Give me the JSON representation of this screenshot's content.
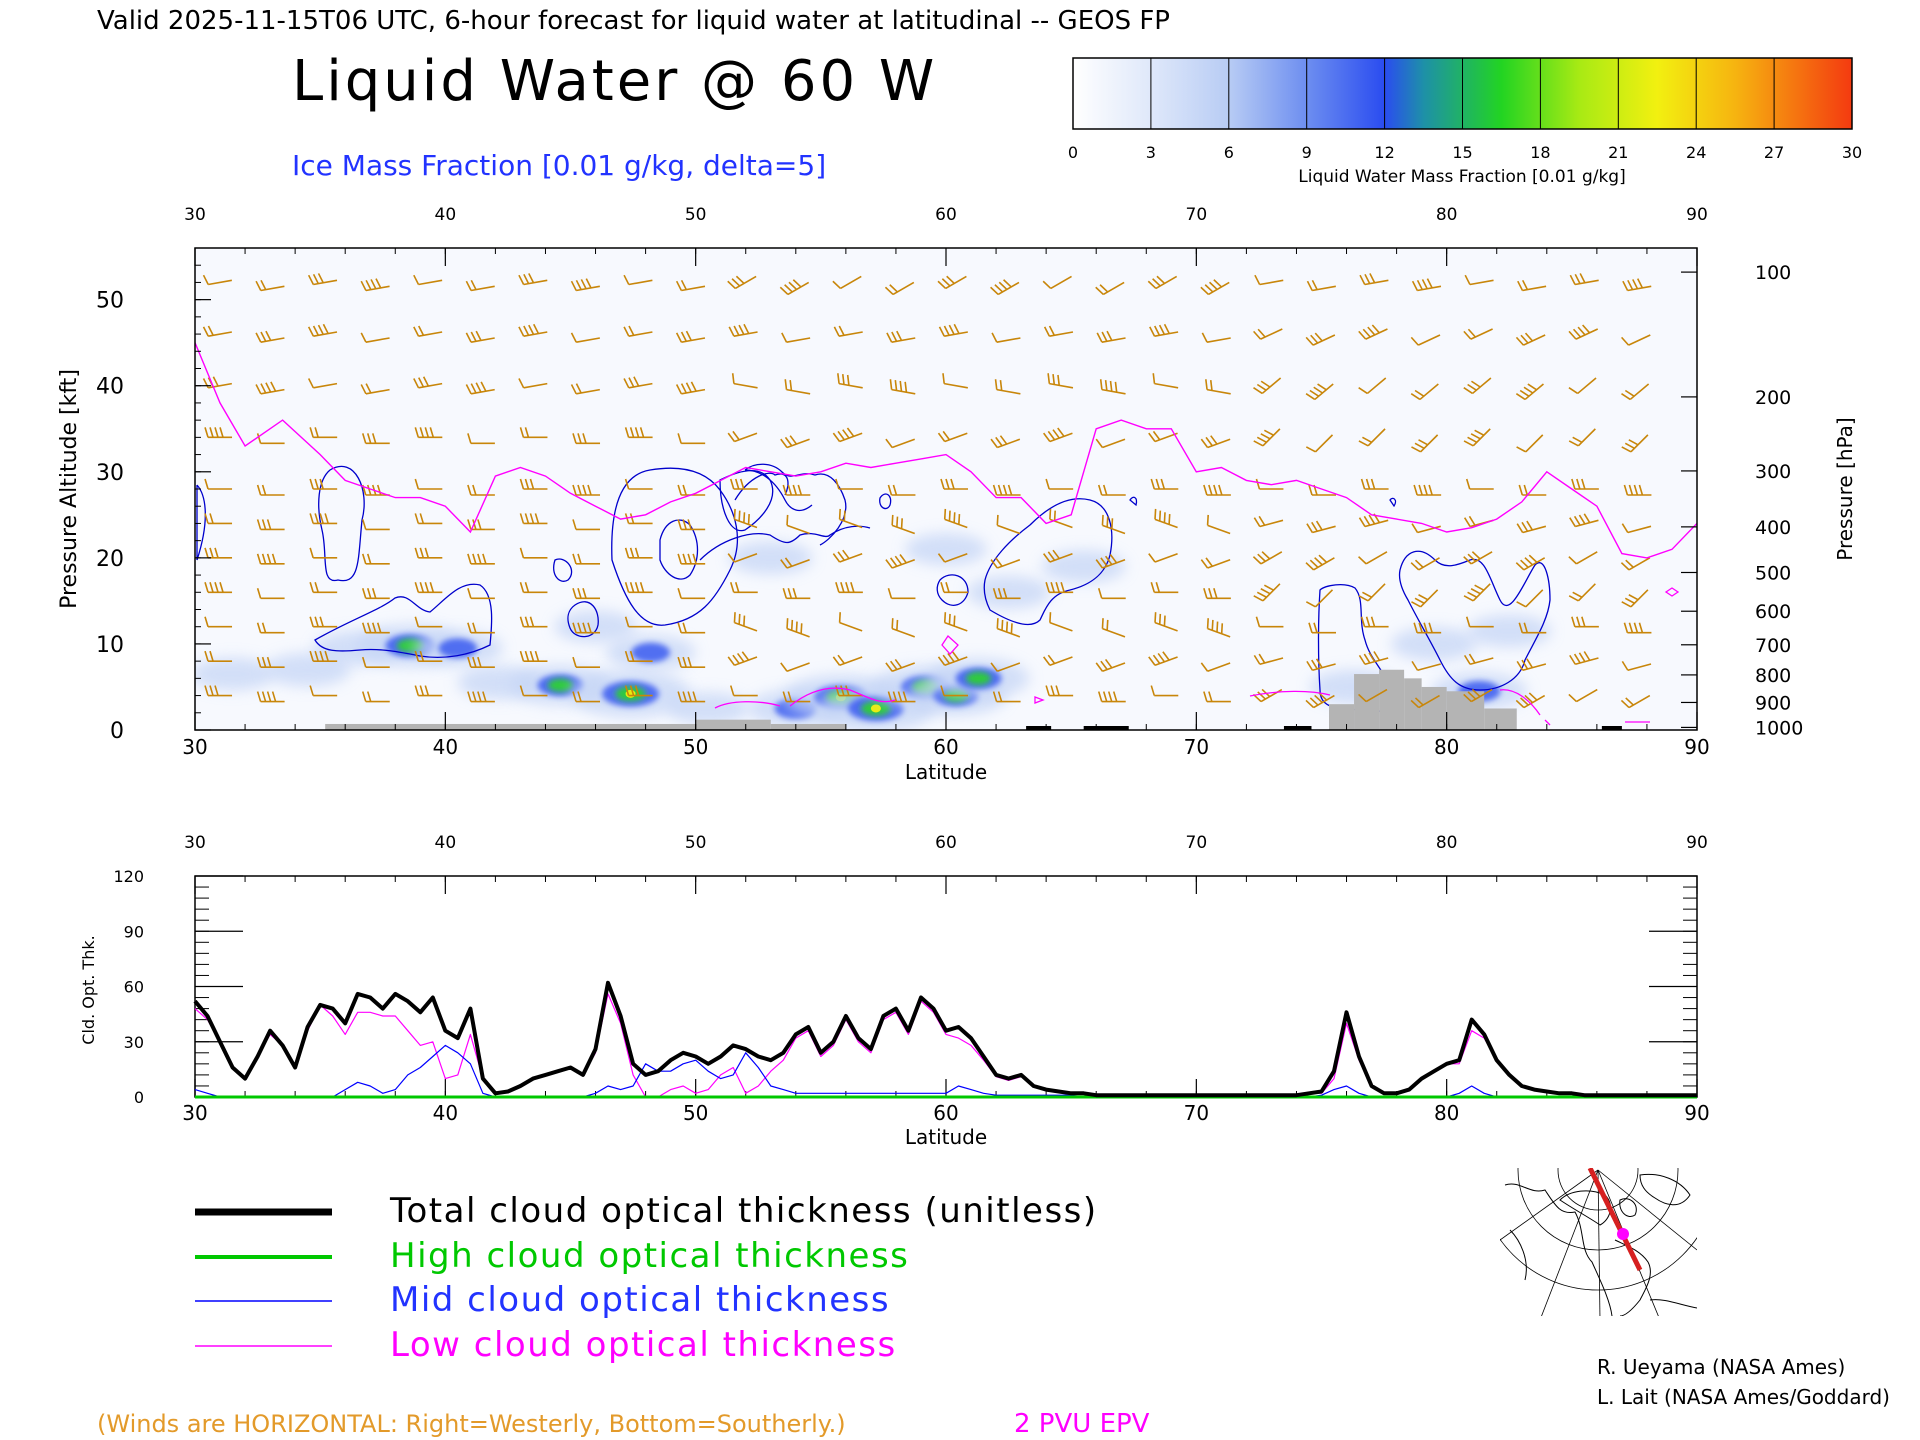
{
  "header": {
    "valid_line": "Valid 2025-11-15T06 UTC, 6-hour forecast for liquid water at latitudinal -- GEOS FP",
    "main_title": "Liquid Water @ 60 W",
    "subtitle": "Ice Mass Fraction [0.01 g/kg, delta=5]"
  },
  "colorbar": {
    "ticks": [
      "0",
      "3",
      "6",
      "9",
      "12",
      "15",
      "18",
      "21",
      "24",
      "27",
      "30"
    ],
    "label": "Liquid Water Mass Fraction [0.01 g/kg]",
    "colors": [
      "#f2f5fc",
      "#ccdaf6",
      "#a6c0f2",
      "#7a9cee",
      "#3a5cf0",
      "#2a9a9a",
      "#2ad42a",
      "#8ae818",
      "#e8ec10",
      "#f4b010",
      "#f46a10"
    ]
  },
  "chart_data": [
    {
      "type": "heatmap",
      "title": "Liquid Water @ 60 W",
      "xlabel": "Latitude",
      "ylabel": "Pressure Altitude [kft]",
      "ylabel_right": "Pressure [hPa]",
      "xlim": [
        30,
        90
      ],
      "ylim": [
        0,
        56
      ],
      "x_ticks": [
        "30",
        "40",
        "50",
        "60",
        "70",
        "80",
        "90"
      ],
      "y_ticks": [
        "0",
        "10",
        "20",
        "30",
        "40",
        "50"
      ],
      "pressure_ticks": [
        {
          "label": "100",
          "kft": 53.2
        },
        {
          "label": "200",
          "kft": 38.7
        },
        {
          "label": "300",
          "kft": 30.1
        },
        {
          "label": "400",
          "kft": 23.6
        },
        {
          "label": "500",
          "kft": 18.3
        },
        {
          "label": "600",
          "kft": 13.8
        },
        {
          "label": "700",
          "kft": 9.9
        },
        {
          "label": "800",
          "kft": 6.4
        },
        {
          "label": "900",
          "kft": 3.2
        },
        {
          "label": "1000",
          "kft": 0.3
        }
      ],
      "liquid_water_blobs": [
        {
          "lat": 31.5,
          "kft": 6.5,
          "value": 6
        },
        {
          "lat": 34.5,
          "kft": 7.0,
          "value": 7
        },
        {
          "lat": 36.5,
          "kft": 9.5,
          "value": 8
        },
        {
          "lat": 38.6,
          "kft": 9.8,
          "value": 18
        },
        {
          "lat": 40.5,
          "kft": 9.5,
          "value": 9
        },
        {
          "lat": 42.2,
          "kft": 5.5,
          "value": 7
        },
        {
          "lat": 44.6,
          "kft": 5.2,
          "value": 15
        },
        {
          "lat": 47.4,
          "kft": 4.2,
          "value": 24
        },
        {
          "lat": 48.2,
          "kft": 9.0,
          "value": 9
        },
        {
          "lat": 50.5,
          "kft": 2.5,
          "value": 5
        },
        {
          "lat": 54.0,
          "kft": 2.5,
          "value": 12
        },
        {
          "lat": 55.8,
          "kft": 3.8,
          "value": 21
        },
        {
          "lat": 57.2,
          "kft": 2.5,
          "value": 23
        },
        {
          "lat": 59.2,
          "kft": 5.0,
          "value": 18
        },
        {
          "lat": 60.4,
          "kft": 4.0,
          "value": 14
        },
        {
          "lat": 61.3,
          "kft": 6.0,
          "value": 15
        },
        {
          "lat": 60.0,
          "kft": 21.0,
          "value": 5
        },
        {
          "lat": 62.5,
          "kft": 16.0,
          "value": 6
        },
        {
          "lat": 53.0,
          "kft": 20.0,
          "value": 6
        },
        {
          "lat": 46.0,
          "kft": 12.0,
          "value": 5
        },
        {
          "lat": 65.5,
          "kft": 19.0,
          "value": 6
        },
        {
          "lat": 76.3,
          "kft": 5.0,
          "value": 8
        },
        {
          "lat": 79.5,
          "kft": 10.0,
          "value": 7
        },
        {
          "lat": 81.3,
          "kft": 4.5,
          "value": 12
        },
        {
          "lat": 82.5,
          "kft": 11.5,
          "value": 6
        }
      ],
      "ice_contours_label": "Ice Mass Fraction [0.01 g/kg, delta=5]",
      "pv2_tropopause": {
        "name": "2 PVU EPV",
        "lat": [
          30,
          31,
          32,
          33.5,
          35,
          36,
          37,
          38,
          39,
          40,
          41,
          42,
          43,
          44,
          45,
          46,
          47,
          48,
          49,
          50,
          51,
          52,
          53,
          54,
          55,
          56,
          57,
          58,
          59,
          60,
          61,
          62,
          63,
          64,
          65,
          66,
          67,
          68,
          69,
          70,
          71,
          72,
          73,
          74,
          75,
          76,
          77,
          78,
          79,
          80,
          81,
          82,
          83,
          84,
          85,
          86,
          87,
          88,
          89,
          90
        ],
        "kft": [
          45,
          38,
          33,
          36,
          32,
          29,
          28,
          27,
          27,
          26,
          23,
          29.5,
          30.5,
          29.5,
          27.5,
          26,
          24.5,
          25,
          26.5,
          27.5,
          29,
          30.5,
          30,
          29.5,
          30,
          31,
          30.5,
          31,
          31.5,
          32,
          30,
          27,
          27,
          24,
          25,
          35,
          36,
          35,
          35,
          30,
          30.5,
          29,
          28.5,
          29,
          28,
          27,
          25,
          24.5,
          24,
          23,
          23.5,
          24.5,
          26.5,
          30,
          28,
          26,
          20.5,
          20,
          21,
          24
        ]
      },
      "topography": [
        {
          "lat_from": 35.2,
          "lat_to": 50.0,
          "kft": 0.7
        },
        {
          "lat_from": 50.0,
          "lat_to": 53.0,
          "kft": 1.2
        },
        {
          "lat_from": 53.0,
          "lat_to": 56.0,
          "kft": 0.7
        },
        {
          "lat_from": 75.3,
          "lat_to": 76.3,
          "kft": 3.0
        },
        {
          "lat_from": 76.3,
          "lat_to": 77.3,
          "kft": 6.5
        },
        {
          "lat_from": 77.3,
          "lat_to": 78.3,
          "kft": 7.0
        },
        {
          "lat_from": 78.3,
          "lat_to": 79.0,
          "kft": 6.0
        },
        {
          "lat_from": 79.0,
          "lat_to": 80.0,
          "kft": 5.0
        },
        {
          "lat_from": 80.0,
          "lat_to": 81.5,
          "kft": 4.5
        },
        {
          "lat_from": 81.5,
          "lat_to": 82.8,
          "kft": 2.5
        }
      ]
    },
    {
      "type": "line",
      "xlabel": "Latitude",
      "ylabel": "Cld. Opt. Thk.",
      "xlim": [
        30,
        90
      ],
      "ylim": [
        0,
        120
      ],
      "x_ticks": [
        "30",
        "40",
        "50",
        "60",
        "70",
        "80",
        "90"
      ],
      "y_ticks": [
        "0",
        "30",
        "60",
        "90",
        "120"
      ],
      "x": [
        30,
        30.5,
        31,
        31.5,
        32,
        32.5,
        33,
        33.5,
        34,
        34.5,
        35,
        35.5,
        36,
        36.5,
        37,
        37.5,
        38,
        38.5,
        39,
        39.5,
        40,
        40.5,
        41,
        41.5,
        42,
        42.5,
        43,
        43.5,
        44,
        44.5,
        45,
        45.5,
        46,
        46.5,
        47,
        47.5,
        48,
        48.5,
        49,
        49.5,
        50,
        50.5,
        51,
        51.5,
        52,
        52.5,
        53,
        53.5,
        54,
        54.5,
        55,
        55.5,
        56,
        56.5,
        57,
        57.5,
        58,
        58.5,
        59,
        59.5,
        60,
        60.5,
        61,
        61.5,
        62,
        62.5,
        63,
        63.5,
        64,
        64.5,
        65,
        65.5,
        66,
        66.5,
        67,
        67.5,
        68,
        68.5,
        69,
        69.5,
        70,
        70.5,
        71,
        71.5,
        72,
        72.5,
        73,
        73.5,
        74,
        74.5,
        75,
        75.5,
        76,
        76.5,
        77,
        77.5,
        78,
        78.5,
        79,
        79.5,
        80,
        80.5,
        81,
        81.5,
        82,
        82.5,
        83,
        83.5,
        84,
        84.5,
        85,
        85.5,
        86,
        86.5,
        87,
        87.5,
        88,
        88.5,
        89,
        89.5,
        90
      ],
      "series": [
        {
          "name": "Total cloud optical thickness (unitless)",
          "color": "#000000",
          "width": 4,
          "values": [
            52,
            44,
            30,
            16,
            10,
            22,
            36,
            28,
            16,
            38,
            50,
            48,
            40,
            56,
            54,
            48,
            56,
            52,
            46,
            54,
            36,
            32,
            48,
            10,
            2,
            3,
            6,
            10,
            12,
            14,
            16,
            12,
            26,
            62,
            44,
            18,
            12,
            14,
            20,
            24,
            22,
            18,
            22,
            28,
            26,
            22,
            20,
            24,
            34,
            38,
            24,
            30,
            44,
            32,
            26,
            44,
            48,
            36,
            54,
            48,
            36,
            38,
            32,
            22,
            12,
            10,
            12,
            6,
            4,
            3,
            2,
            2,
            1,
            1,
            1,
            1,
            1,
            1,
            1,
            1,
            1,
            1,
            1,
            1,
            1,
            1,
            1,
            1,
            1,
            2,
            3,
            14,
            46,
            22,
            6,
            2,
            2,
            4,
            10,
            14,
            18,
            20,
            42,
            34,
            20,
            12,
            6,
            4,
            3,
            2,
            2,
            1,
            1,
            1,
            1,
            1,
            1,
            1,
            1,
            1,
            1
          ]
        },
        {
          "name": "High cloud optical thickness",
          "color": "#00c800",
          "width": 3,
          "values": [
            0,
            0,
            0,
            0,
            0,
            0,
            0,
            0,
            0,
            0,
            0,
            0,
            0,
            0,
            0,
            0,
            0,
            0,
            0,
            0,
            0,
            0,
            0,
            0,
            0,
            0,
            0,
            0,
            0,
            0,
            0,
            0,
            0,
            0,
            0,
            0,
            0,
            0,
            0,
            0,
            0,
            0,
            0,
            0,
            0,
            0,
            0,
            0,
            0,
            0,
            0,
            0,
            0,
            0,
            0,
            0,
            0,
            0,
            0,
            0,
            0,
            0,
            0,
            0,
            0,
            0,
            0,
            0,
            0,
            0,
            0,
            0,
            0,
            0,
            0,
            0,
            0,
            0,
            0,
            0,
            0,
            0,
            0,
            0,
            0,
            0,
            0,
            0,
            0,
            0,
            0,
            0,
            0,
            0,
            0,
            0,
            0,
            0,
            0,
            0,
            0,
            0,
            0,
            0,
            0,
            0,
            0,
            0,
            0,
            0,
            0,
            0,
            0,
            0,
            0,
            0,
            0,
            0,
            0,
            0,
            0
          ]
        },
        {
          "name": "Mid cloud optical thickness",
          "color": "#0000ff",
          "width": 1.2,
          "values": [
            4,
            2,
            0,
            0,
            0,
            0,
            0,
            0,
            0,
            0,
            0,
            0,
            4,
            8,
            6,
            2,
            4,
            12,
            16,
            22,
            28,
            24,
            18,
            2,
            0,
            0,
            0,
            0,
            0,
            0,
            0,
            0,
            2,
            6,
            4,
            6,
            18,
            14,
            14,
            18,
            20,
            14,
            10,
            12,
            24,
            16,
            6,
            4,
            2,
            2,
            2,
            2,
            2,
            2,
            2,
            2,
            2,
            2,
            2,
            2,
            2,
            6,
            4,
            2,
            1,
            1,
            1,
            1,
            1,
            1,
            1,
            0,
            0,
            0,
            0,
            0,
            0,
            0,
            0,
            0,
            0,
            0,
            0,
            0,
            0,
            0,
            0,
            0,
            0,
            0,
            1,
            4,
            6,
            2,
            0,
            0,
            0,
            0,
            0,
            0,
            0,
            2,
            6,
            2,
            0,
            0,
            0,
            0,
            0,
            0,
            0,
            0,
            0,
            0,
            0,
            0,
            0,
            0,
            0,
            0,
            0
          ]
        },
        {
          "name": "Low cloud optical thickness",
          "color": "#ff00ff",
          "width": 1.2,
          "values": [
            48,
            42,
            30,
            16,
            10,
            22,
            34,
            28,
            16,
            36,
            50,
            44,
            34,
            46,
            46,
            44,
            44,
            36,
            28,
            30,
            10,
            12,
            34,
            10,
            2,
            3,
            6,
            10,
            12,
            14,
            16,
            12,
            24,
            56,
            40,
            12,
            0,
            0,
            4,
            6,
            2,
            4,
            12,
            16,
            2,
            6,
            14,
            20,
            32,
            36,
            22,
            28,
            42,
            30,
            24,
            42,
            46,
            34,
            52,
            46,
            34,
            32,
            28,
            20,
            11,
            9,
            11,
            6,
            4,
            3,
            2,
            2,
            1,
            1,
            1,
            1,
            1,
            1,
            1,
            1,
            1,
            1,
            1,
            1,
            1,
            1,
            1,
            1,
            1,
            2,
            2,
            10,
            40,
            20,
            6,
            2,
            2,
            4,
            10,
            14,
            18,
            18,
            36,
            32,
            20,
            12,
            6,
            4,
            3,
            2,
            2,
            1,
            1,
            1,
            1,
            1,
            1,
            1,
            1,
            1,
            1
          ]
        }
      ]
    }
  ],
  "legend": [
    {
      "label": "Total cloud optical thickness (unitless)",
      "color": "#000000",
      "text_color": "#000000"
    },
    {
      "label": "High cloud optical thickness",
      "color": "#00c800",
      "text_color": "#00c800"
    },
    {
      "label": "Mid cloud optical thickness",
      "color": "#0000ff",
      "text_color": "#2233ff"
    },
    {
      "label": "Low cloud optical thickness",
      "color": "#ff00ff",
      "text_color": "#ff00ff"
    }
  ],
  "footer": {
    "winds_note": "(Winds are HORIZONTAL: Right=Westerly, Bottom=Southerly.)",
    "epv_label": "2 PVU EPV",
    "credit1": "R. Ueyama (NASA Ames)",
    "credit2": "L. Lait (NASA Ames/Goddard)"
  },
  "inset_map": {
    "section_line_color": "#d62020",
    "marker_color": "#ff00ff"
  },
  "colors": {
    "wind_barb": "#c8860a",
    "ice_contour": "#0000cc",
    "pv_line": "#ff00ff",
    "topography": "#b4b4b4",
    "subtitle": "#2233ff",
    "winds_note": "#e39a2a"
  }
}
